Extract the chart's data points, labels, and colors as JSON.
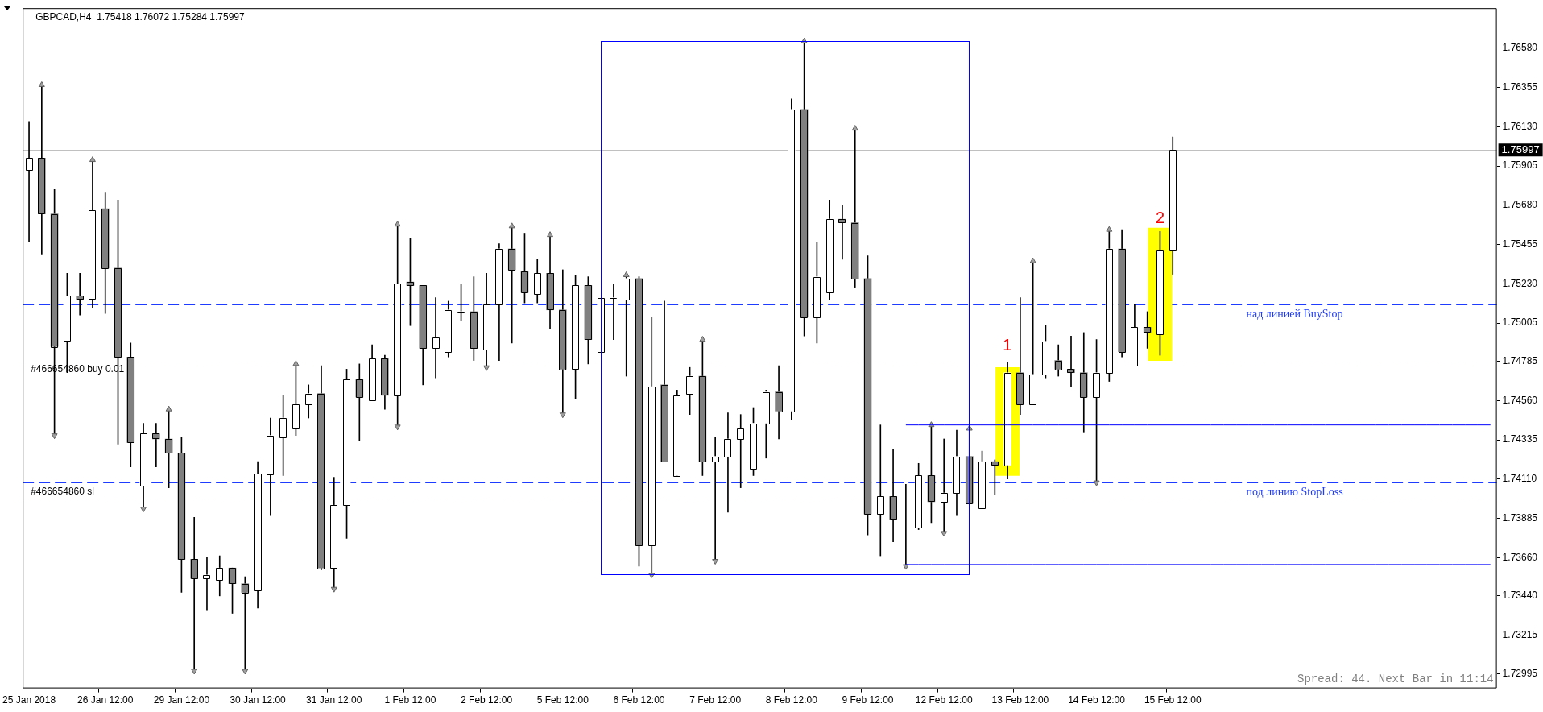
{
  "chart_data": {
    "type": "candlestick",
    "title": "GBPCAD,H4  1.75418 1.76072 1.75284 1.75997",
    "categories": [
      "25 Jan 2018",
      null,
      null,
      null,
      null,
      null,
      "26 Jan 12:00",
      null,
      null,
      null,
      null,
      null,
      "29 Jan 12:00",
      null,
      null,
      null,
      null,
      null,
      "30 Jan 12:00",
      null,
      null,
      null,
      null,
      null,
      "31 Jan 12:00",
      null,
      null,
      null,
      null,
      null,
      "1 Feb 12:00",
      null,
      null,
      null,
      null,
      null,
      "2 Feb 12:00",
      null,
      null,
      null,
      null,
      null,
      "5 Feb 12:00",
      null,
      null,
      null,
      null,
      null,
      "6 Feb 12:00",
      null,
      null,
      null,
      null,
      null,
      "7 Feb 12:00",
      null,
      null,
      null,
      null,
      null,
      "8 Feb 12:00",
      null,
      null,
      null,
      null,
      null,
      "9 Feb 12:00",
      null,
      null,
      null,
      null,
      null,
      "12 Feb 12:00",
      null,
      null,
      null,
      null,
      null,
      "13 Feb 12:00",
      null,
      null,
      null,
      null,
      null,
      "14 Feb 12:00",
      null,
      null,
      null,
      null,
      null,
      "15 Feb 12:00",
      null,
      null,
      null,
      null,
      null,
      null,
      null,
      null,
      null,
      null,
      null,
      null,
      null,
      null,
      null,
      null,
      null,
      null,
      null,
      null,
      null,
      null,
      null,
      null,
      null
    ],
    "ohlc": [
      [
        1.7588,
        1.7616,
        1.7547,
        1.7595
      ],
      [
        1.7595,
        1.7637,
        1.754,
        1.7563
      ],
      [
        1.7563,
        1.7577,
        1.7436,
        1.7487
      ],
      [
        1.749,
        1.7529,
        1.7472,
        1.7516
      ],
      [
        1.7516,
        1.7529,
        1.7505,
        1.7514
      ],
      [
        1.7514,
        1.7594,
        1.7509,
        1.7565
      ],
      [
        1.7566,
        1.7575,
        1.7506,
        1.7532
      ],
      [
        1.7532,
        1.7571,
        1.7431,
        1.7481
      ],
      [
        1.7481,
        1.7489,
        1.7418,
        1.7432
      ],
      [
        1.7407,
        1.7443,
        1.7394,
        1.7437
      ],
      [
        1.7437,
        1.7443,
        1.7418,
        1.7434
      ],
      [
        1.7434,
        1.7451,
        1.7406,
        1.7426
      ],
      [
        1.7426,
        1.7435,
        1.7346,
        1.7365
      ],
      [
        1.7365,
        1.7389,
        1.7301,
        1.7354
      ],
      [
        1.7354,
        1.7366,
        1.7336,
        1.7356
      ],
      [
        1.7353,
        1.7367,
        1.7344,
        1.736
      ],
      [
        1.736,
        1.736,
        1.7334,
        1.7351
      ],
      [
        1.7351,
        1.7355,
        1.7301,
        1.7346
      ],
      [
        1.7347,
        1.7421,
        1.7337,
        1.7414
      ],
      [
        1.7414,
        1.7446,
        1.739,
        1.7436
      ],
      [
        1.7435,
        1.7459,
        1.7413,
        1.7446
      ],
      [
        1.744,
        1.7477,
        1.7436,
        1.7454
      ],
      [
        1.7454,
        1.7465,
        1.7446,
        1.746
      ],
      [
        1.746,
        1.7476,
        1.7359,
        1.736
      ],
      [
        1.736,
        1.7412,
        1.7348,
        1.7396
      ],
      [
        1.7396,
        1.7474,
        1.7377,
        1.7468
      ],
      [
        1.7468,
        1.7477,
        1.7433,
        1.7458
      ],
      [
        1.7456,
        1.7488,
        1.7456,
        1.748
      ],
      [
        1.748,
        1.7482,
        1.7451,
        1.7459
      ],
      [
        1.7459,
        1.7557,
        1.7441,
        1.7523
      ],
      [
        1.7524,
        1.7549,
        1.7499,
        1.7522
      ],
      [
        1.7522,
        1.7522,
        1.7465,
        1.7486
      ],
      [
        1.7486,
        1.7515,
        1.7469,
        1.7492
      ],
      [
        1.7484,
        1.7513,
        1.7481,
        1.7508
      ],
      [
        1.7507,
        1.7523,
        1.7502,
        1.7507
      ],
      [
        1.7507,
        1.7527,
        1.7479,
        1.7486
      ],
      [
        1.7485,
        1.7529,
        1.7475,
        1.7511
      ],
      [
        1.7511,
        1.7546,
        1.7479,
        1.7543
      ],
      [
        1.7543,
        1.7556,
        1.7489,
        1.7531
      ],
      [
        1.753,
        1.7552,
        1.7512,
        1.7518
      ],
      [
        1.7517,
        1.7537,
        1.7512,
        1.7529
      ],
      [
        1.7529,
        1.7551,
        1.7497,
        1.7508
      ],
      [
        1.7508,
        1.7531,
        1.7448,
        1.7474
      ],
      [
        1.7474,
        1.7528,
        1.7457,
        1.7522
      ],
      [
        1.7522,
        1.7527,
        1.7477,
        1.7491
      ],
      [
        1.7484,
        1.7515,
        1.7484,
        1.7515
      ],
      [
        1.7515,
        1.7523,
        1.7491,
        1.7515
      ],
      [
        1.7514,
        1.7528,
        1.747,
        1.7526
      ],
      [
        1.7526,
        1.7527,
        1.7361,
        1.7373
      ],
      [
        1.7373,
        1.7504,
        1.7356,
        1.7464
      ],
      [
        1.7465,
        1.7513,
        1.7421,
        1.7421
      ],
      [
        1.7413,
        1.7462,
        1.7413,
        1.7459
      ],
      [
        1.746,
        1.7475,
        1.7448,
        1.747
      ],
      [
        1.747,
        1.7491,
        1.7413,
        1.7421
      ],
      [
        1.7421,
        1.7435,
        1.7364,
        1.7424
      ],
      [
        1.7424,
        1.7449,
        1.7392,
        1.7434
      ],
      [
        1.7434,
        1.7448,
        1.7406,
        1.744
      ],
      [
        1.7417,
        1.7452,
        1.7413,
        1.7443
      ],
      [
        1.7443,
        1.7462,
        1.7423,
        1.7461
      ],
      [
        1.7461,
        1.7476,
        1.7434,
        1.745
      ],
      [
        1.745,
        1.7629,
        1.7445,
        1.7623
      ],
      [
        1.7623,
        1.7662,
        1.7493,
        1.7504
      ],
      [
        1.7504,
        1.7547,
        1.7489,
        1.7527
      ],
      [
        1.7518,
        1.7571,
        1.7514,
        1.756
      ],
      [
        1.756,
        1.7568,
        1.7537,
        1.7558
      ],
      [
        1.7558,
        1.7612,
        1.7521,
        1.7526
      ],
      [
        1.7526,
        1.7539,
        1.7379,
        1.7391
      ],
      [
        1.7391,
        1.7442,
        1.7367,
        1.7401
      ],
      [
        1.7401,
        1.7428,
        1.7375,
        1.7388
      ],
      [
        1.7383,
        1.7408,
        1.7361,
        1.7383
      ],
      [
        1.7383,
        1.742,
        1.7382,
        1.7413
      ],
      [
        1.7413,
        1.7442,
        1.7386,
        1.7398
      ],
      [
        1.7398,
        1.7434,
        1.738,
        1.7403
      ],
      [
        1.7403,
        1.7439,
        1.739,
        1.7424
      ],
      [
        1.7424,
        1.744,
        1.7397,
        1.7397
      ],
      [
        1.7394,
        1.7427,
        1.7394,
        1.7421
      ],
      [
        1.7421,
        1.7422,
        1.7402,
        1.7419
      ],
      [
        1.7419,
        1.7478,
        1.7411,
        1.7472
      ],
      [
        1.7472,
        1.7515,
        1.7448,
        1.7454
      ],
      [
        1.7454,
        1.7536,
        1.7454,
        1.7471
      ],
      [
        1.7471,
        1.7499,
        1.7469,
        1.749
      ],
      [
        1.7479,
        1.7488,
        1.747,
        1.7474
      ],
      [
        1.7474,
        1.7493,
        1.7464,
        1.7472
      ],
      [
        1.7472,
        1.7495,
        1.7438,
        1.7458
      ],
      [
        1.7458,
        1.7491,
        1.7409,
        1.7472
      ],
      [
        1.7472,
        1.7554,
        1.7467,
        1.7543
      ],
      [
        1.7543,
        1.7554,
        1.7481,
        1.7484
      ],
      [
        1.7476,
        1.7511,
        1.7476,
        1.7498
      ],
      [
        1.7498,
        1.7507,
        1.7486,
        1.7495
      ],
      [
        1.7494,
        1.7553,
        1.7482,
        1.7542
      ],
      [
        1.75418,
        1.76072,
        1.75284,
        1.75997
      ],
      null,
      null,
      null,
      null,
      null,
      null,
      null,
      null,
      null,
      null,
      null,
      null,
      null,
      null,
      null,
      null,
      null,
      null,
      null,
      null,
      null,
      null,
      null,
      null,
      null
    ],
    "colors": [
      "#ffffff",
      "#808080",
      "#808080",
      "#ffffff",
      "#808080",
      "#ffffff",
      "#808080",
      "#808080",
      "#808080",
      "#ffffff",
      "#808080",
      "#808080",
      "#808080",
      "#808080",
      "#ffffff",
      "#ffffff",
      "#808080",
      "#808080",
      "#ffffff",
      "#ffffff",
      "#ffffff",
      "#ffffff",
      "#ffffff",
      "#808080",
      "#ffffff",
      "#ffffff",
      "#808080",
      "#ffffff",
      "#808080",
      "#ffffff",
      "#808080",
      "#808080",
      "#ffffff",
      "#ffffff",
      "#ffffff",
      "#808080",
      "#ffffff",
      "#ffffff",
      "#808080",
      "#808080",
      "#ffffff",
      "#808080",
      "#808080",
      "#ffffff",
      "#808080",
      "#ffffff",
      "#ffffff",
      "#ffffff",
      "#808080",
      "#ffffff",
      "#808080",
      "#ffffff",
      "#ffffff",
      "#808080",
      "#ffffff",
      "#ffffff",
      "#ffffff",
      "#ffffff",
      "#ffffff",
      "#808080",
      "#ffffff",
      "#808080",
      "#ffffff",
      "#ffffff",
      "#808080",
      "#808080",
      "#808080",
      "#ffffff",
      "#808080",
      "#ffffff",
      "#ffffff",
      "#808080",
      "#ffffff",
      "#ffffff",
      "#808080",
      "#ffffff",
      "#808080",
      "#ffffff",
      "#808080",
      "#ffffff",
      "#ffffff",
      "#808080",
      "#808080",
      "#808080",
      "#ffffff",
      "#ffffff",
      "#808080",
      "#ffffff",
      "#808080",
      "#ffffff",
      "#ffffff",
      null,
      null,
      null,
      null,
      null,
      null,
      null,
      null,
      null,
      null,
      null,
      null,
      null,
      null,
      null,
      null,
      null,
      null,
      null,
      null,
      null,
      null,
      null,
      null,
      null
    ],
    "ylim": [
      1.7291,
      1.7681
    ],
    "yticks": [
      {
        "value": 1.7658,
        "label": "1.76580"
      },
      1.76355,
      {
        "value": 1.7613,
        "label": "1.76130"
      },
      1.75905,
      {
        "value": 1.7568,
        "label": "1.75680"
      },
      1.75455,
      {
        "value": 1.7523,
        "label": "1.75230"
      },
      1.75005,
      1.74785,
      {
        "value": 1.7456,
        "label": "1.74560"
      },
      1.74335,
      {
        "value": 1.7411,
        "label": "1.74110"
      },
      1.73885,
      {
        "value": 1.7366,
        "label": "1.73660"
      },
      {
        "value": 1.7344,
        "label": "1.73440"
      },
      1.73215,
      1.72995
    ],
    "ref_lines": [
      {
        "axis": "y",
        "value": 1.75997,
        "label": "1.75997",
        "color": "#c0c0c0",
        "line_style": "solid"
      },
      {
        "axis": "y",
        "value": 1.7511,
        "label": "над линией BuyStop",
        "color": "#1e3cff",
        "line_style": "dashed"
      },
      {
        "axis": "y",
        "value": 1.74785,
        "label": "#466654860 buy 0.01",
        "color": "#008000",
        "line_style": "dashdot"
      },
      {
        "axis": "y",
        "value": 1.7409,
        "label": "под линию StopLoss",
        "color": "#1e3cff",
        "line_style": "dashed"
      },
      {
        "axis": "y",
        "value": 1.74,
        "label": "#466654860 sl",
        "color": "#ff4500",
        "line_style": "dashdot"
      }
    ],
    "series": [
      {
        "type": "bar",
        "color": "#ffff00",
        "base": [
          null,
          null,
          null,
          null,
          null,
          null,
          null,
          null,
          null,
          null,
          null,
          null,
          null,
          null,
          null,
          null,
          null,
          null,
          null,
          null,
          null,
          null,
          null,
          null,
          null,
          null,
          null,
          null,
          null,
          null,
          null,
          null,
          null,
          null,
          null,
          null,
          null,
          null,
          null,
          null,
          null,
          null,
          null,
          null,
          null,
          null,
          null,
          null,
          null,
          null,
          null,
          null,
          null,
          null,
          null,
          null,
          null,
          null,
          null,
          null,
          null,
          null,
          null,
          null,
          null,
          null,
          null,
          null,
          null,
          null,
          null,
          null,
          null,
          null,
          null,
          null,
          null,
          1.7413,
          null,
          null,
          null,
          null,
          null,
          null,
          null,
          null,
          null,
          null,
          null,
          1.7479,
          null,
          null,
          null,
          null,
          null,
          null,
          null,
          null,
          null,
          null,
          null,
          null,
          null,
          null,
          null,
          null,
          null,
          null,
          null,
          null,
          null,
          null,
          null,
          null,
          null,
          null
        ],
        "values": [
          null,
          null,
          null,
          null,
          null,
          null,
          null,
          null,
          null,
          null,
          null,
          null,
          null,
          null,
          null,
          null,
          null,
          null,
          null,
          null,
          null,
          null,
          null,
          null,
          null,
          null,
          null,
          null,
          null,
          null,
          null,
          null,
          null,
          null,
          null,
          null,
          null,
          null,
          null,
          null,
          null,
          null,
          null,
          null,
          null,
          null,
          null,
          null,
          null,
          null,
          null,
          null,
          null,
          null,
          null,
          null,
          null,
          null,
          null,
          null,
          null,
          null,
          null,
          null,
          null,
          null,
          null,
          null,
          null,
          null,
          null,
          null,
          null,
          null,
          null,
          null,
          null,
          0.0062,
          null,
          null,
          null,
          null,
          null,
          null,
          null,
          null,
          null,
          null,
          null,
          0.0076,
          null,
          null,
          null,
          null,
          null,
          null,
          null,
          null,
          null,
          null,
          null,
          null,
          null,
          null,
          null,
          null,
          null,
          null,
          null,
          null,
          null,
          null,
          null,
          null,
          null,
          null
        ]
      },
      {
        "type": "line",
        "color": "#0000ff",
        "values": [
          null,
          null,
          null,
          null,
          null,
          null,
          null,
          null,
          null,
          null,
          null,
          null,
          null,
          null,
          null,
          null,
          null,
          null,
          null,
          null,
          null,
          null,
          null,
          null,
          null,
          null,
          null,
          null,
          null,
          null,
          null,
          null,
          null,
          null,
          null,
          null,
          null,
          null,
          null,
          null,
          null,
          null,
          null,
          null,
          null,
          null,
          null,
          null,
          null,
          null,
          null,
          null,
          null,
          null,
          null,
          null,
          null,
          null,
          null,
          null,
          null,
          null,
          null,
          null,
          null,
          null,
          null,
          null,
          null,
          1.7442,
          1.7442,
          1.7442,
          1.7442,
          1.7442,
          1.7442,
          1.7442,
          1.7442,
          1.7442,
          1.7442,
          1.7442,
          1.7442,
          1.7442,
          1.7442,
          1.7442,
          1.7442,
          1.7442,
          1.7442,
          1.7442,
          1.7442,
          1.7442,
          1.7442,
          1.7442,
          1.7442,
          1.7442,
          1.7442,
          1.7442,
          1.7442,
          1.7442,
          1.7442,
          1.7442,
          1.7442,
          1.7442,
          1.7442,
          1.7442,
          1.7442,
          1.7442,
          1.7442,
          1.7442,
          1.7442,
          1.7442,
          1.7442,
          1.7442,
          1.7442,
          1.7442,
          1.7442,
          1.7442
        ]
      },
      {
        "type": "line",
        "color": "#0000ff",
        "values": [
          null,
          null,
          null,
          null,
          null,
          null,
          null,
          null,
          null,
          null,
          null,
          null,
          null,
          null,
          null,
          null,
          null,
          null,
          null,
          null,
          null,
          null,
          null,
          null,
          null,
          null,
          null,
          null,
          null,
          null,
          null,
          null,
          null,
          null,
          null,
          null,
          null,
          null,
          null,
          null,
          null,
          null,
          null,
          null,
          null,
          null,
          null,
          null,
          null,
          null,
          null,
          null,
          null,
          null,
          null,
          null,
          null,
          null,
          null,
          null,
          null,
          null,
          null,
          null,
          null,
          null,
          null,
          null,
          null,
          1.7362,
          1.7362,
          1.7362,
          1.7362,
          1.7362,
          1.7362,
          1.7362,
          1.7362,
          1.7362,
          1.7362,
          1.7362,
          1.7362,
          1.7362,
          1.7362,
          1.7362,
          1.7362,
          1.7362,
          1.7362,
          1.7362,
          1.7362,
          1.7362,
          1.7362,
          1.7362,
          1.7362,
          1.7362,
          1.7362,
          1.7362,
          1.7362,
          1.7362,
          1.7362,
          1.7362,
          1.7362,
          1.7362,
          1.7362,
          1.7362,
          1.7362,
          1.7362,
          1.7362,
          1.7362,
          1.7362,
          1.7362,
          1.7362,
          1.7362,
          1.7362,
          1.7362,
          1.7362,
          1.7362
        ]
      },
      {
        "type": "scatter",
        "color": "#a0a0a0",
        "marker": "triangle",
        "values": [
          null,
          1.7637,
          null,
          null,
          null,
          1.7594,
          null,
          null,
          null,
          null,
          null,
          1.7451,
          null,
          null,
          null,
          null,
          null,
          null,
          null,
          null,
          null,
          1.7477,
          null,
          null,
          null,
          null,
          null,
          null,
          null,
          1.7557,
          null,
          null,
          null,
          null,
          null,
          null,
          null,
          null,
          1.7556,
          null,
          null,
          1.7551,
          null,
          null,
          null,
          null,
          null,
          1.7528,
          null,
          null,
          null,
          null,
          null,
          1.7491,
          null,
          null,
          null,
          null,
          null,
          null,
          null,
          1.7662,
          null,
          null,
          null,
          1.7612,
          null,
          null,
          null,
          null,
          null,
          1.7442,
          null,
          null,
          1.744,
          null,
          null,
          null,
          null,
          1.7536,
          null,
          null,
          null,
          null,
          null,
          1.7554,
          null,
          null,
          null,
          null,
          null,
          null,
          null,
          null,
          null,
          null,
          null,
          null,
          null,
          null,
          null,
          null,
          null,
          null,
          null,
          null,
          null,
          null,
          null,
          null,
          null,
          null,
          null,
          null,
          null,
          null
        ]
      },
      {
        "type": "scatter",
        "color": "#a0a0a0",
        "marker": "triangle",
        "values": [
          null,
          null,
          1.7436,
          null,
          null,
          null,
          null,
          null,
          null,
          1.7394,
          null,
          null,
          null,
          1.7301,
          null,
          null,
          null,
          1.7301,
          null,
          null,
          null,
          null,
          null,
          null,
          1.7348,
          null,
          null,
          null,
          null,
          1.7441,
          null,
          null,
          null,
          null,
          null,
          null,
          1.7475,
          null,
          null,
          null,
          null,
          null,
          1.7448,
          null,
          null,
          null,
          null,
          null,
          null,
          1.7356,
          null,
          null,
          null,
          null,
          1.7364,
          null,
          null,
          null,
          null,
          null,
          null,
          null,
          null,
          null,
          null,
          null,
          null,
          null,
          null,
          1.7361,
          null,
          null,
          1.738,
          null,
          null,
          null,
          null,
          null,
          null,
          null,
          null,
          null,
          null,
          null,
          1.7409,
          null,
          null,
          null,
          null,
          null,
          null,
          null,
          null,
          null,
          null,
          null,
          null,
          null,
          null,
          null,
          null,
          null,
          null,
          null,
          null,
          null,
          null,
          null,
          null,
          null,
          null,
          null,
          null,
          null,
          null,
          null
        ]
      }
    ],
    "annotations": [
      "1",
      "2",
      "Spread: 44. Next Bar in 11:14"
    ]
  }
}
